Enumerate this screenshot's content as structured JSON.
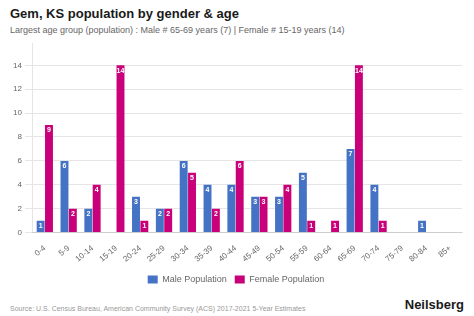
{
  "chart_data": {
    "type": "bar",
    "title": "Gem, KS population by gender & age",
    "subtitle": "Largest age group (population) : Male # 65-69 years (7) | Female # 15-19 years (14)",
    "categories": [
      "0-4",
      "5-9",
      "10-14",
      "15-19",
      "20-24",
      "25-29",
      "30-34",
      "35-39",
      "40-44",
      "45-49",
      "50-54",
      "55-59",
      "60-64",
      "65-69",
      "70-74",
      "75-79",
      "80-84",
      "85+"
    ],
    "series": [
      {
        "name": "Male Population",
        "color": "#4472c4",
        "values": [
          1,
          6,
          2,
          0,
          3,
          2,
          6,
          4,
          4,
          3,
          3,
          5,
          0,
          7,
          4,
          0,
          1,
          0
        ],
        "value_labels": [
          "1",
          "6",
          "2",
          null,
          "3",
          "2",
          "6",
          "4",
          "4",
          "3",
          "3",
          "5",
          null,
          "7",
          "4",
          null,
          "1",
          null
        ]
      },
      {
        "name": "Female Population",
        "color": "#c9007a",
        "values": [
          9,
          2,
          4,
          14,
          1,
          2,
          5,
          2,
          6,
          3,
          4,
          1,
          1,
          14,
          1,
          0,
          0,
          0
        ],
        "value_labels": [
          "9",
          "2",
          "4",
          "14",
          "1",
          "2",
          "5",
          "2",
          "6",
          "3",
          "4",
          "1",
          "1",
          "14",
          "1",
          null,
          null,
          null
        ]
      }
    ],
    "ylim": [
      0,
      15.8
    ],
    "yticks": [
      0,
      2,
      4,
      6,
      8,
      10,
      12,
      14
    ],
    "grid": true,
    "legend": "bottom",
    "data_labels": true,
    "annotations": [
      "Source: U.S. Census Bureau, American Community Survey (ACS) 2017-2021 5-Year Estimates",
      "Neilsberg"
    ]
  }
}
